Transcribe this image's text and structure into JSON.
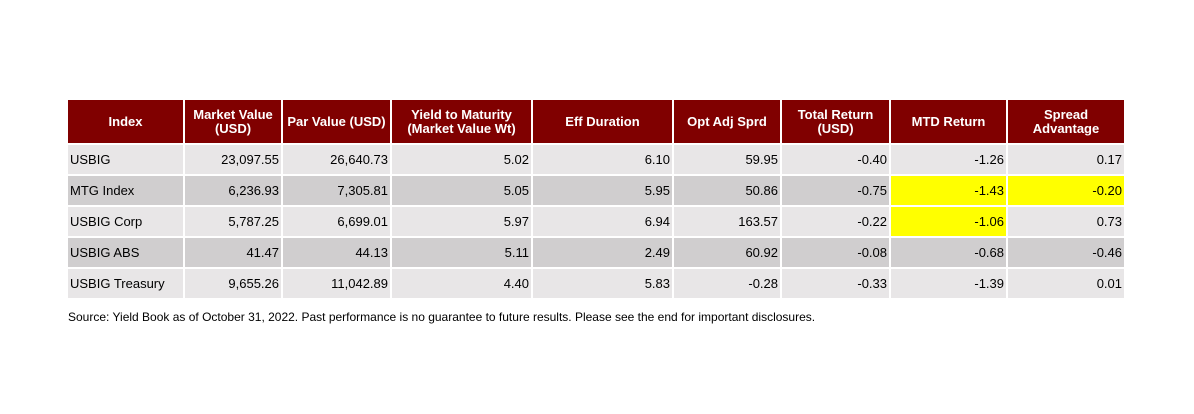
{
  "table": {
    "columns": [
      "Index",
      "Market Value (USD)",
      "Par Value (USD)",
      "Yield to Maturity (Market Value Wt)",
      "Eff Duration",
      "Opt Adj Sprd",
      "Total Return (USD)",
      "MTD Return",
      "Spread Advantage"
    ],
    "rows": [
      [
        "USBIG",
        "23,097.55",
        "26,640.73",
        "5.02",
        "6.10",
        "59.95",
        "-0.40",
        "-1.26",
        "0.17"
      ],
      [
        "MTG Index",
        "6,236.93",
        "7,305.81",
        "5.05",
        "5.95",
        "50.86",
        "-0.75",
        "-1.43",
        "-0.20"
      ],
      [
        "USBIG Corp",
        "5,787.25",
        "6,699.01",
        "5.97",
        "6.94",
        "163.57",
        "-0.22",
        "-1.06",
        "0.73"
      ],
      [
        "USBIG ABS",
        "41.47",
        "44.13",
        "5.11",
        "2.49",
        "60.92",
        "-0.08",
        "-0.68",
        "-0.46"
      ],
      [
        "USBIG Treasury",
        "9,655.26",
        "11,042.89",
        "4.40",
        "5.83",
        "-0.28",
        "-0.33",
        "-1.39",
        "0.01"
      ]
    ],
    "header_color": "#800000",
    "row_colors": [
      "#e8e6e7",
      "#d0cecf"
    ],
    "highlight": {
      "color": "#ffff00",
      "cells": [
        [
          1,
          7
        ],
        [
          1,
          8
        ],
        [
          2,
          7
        ]
      ]
    }
  },
  "source": "Source: Yield Book as of October 31, 2022. Past performance is no guarantee to future results. Please see the end for important disclosures."
}
